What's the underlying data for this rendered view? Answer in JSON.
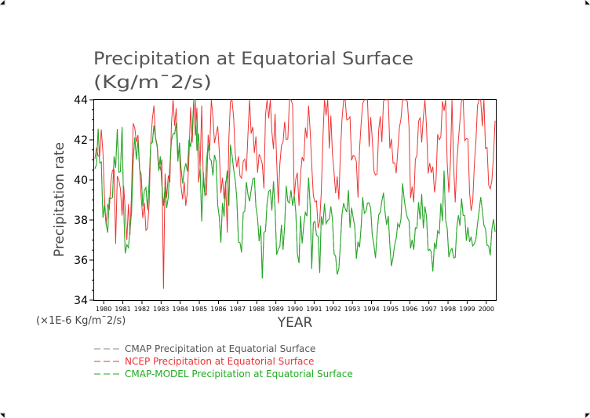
{
  "chart_data": {
    "type": "line",
    "title": "Precipitation at Equatorial Surface",
    "units": "(Kg/m¯2/s)",
    "ylabel": "Precipitation rate",
    "xlabel": "YEAR",
    "yscale_label": "(×1E-6 Kg/m¯2/s)",
    "ylim": [
      34,
      44
    ],
    "yticks": [
      "34",
      "36",
      "38",
      "40",
      "42",
      "44"
    ],
    "x_start": 1979.5,
    "x_end": 2000.5,
    "xticks": [
      "1980",
      "1981",
      "1982",
      "1983",
      "1984",
      "1985",
      "1986",
      "1987",
      "1988",
      "1989",
      "1990",
      "1991",
      "1992",
      "1993",
      "1994",
      "1995",
      "1996",
      "1997",
      "1998",
      "1999",
      "2000"
    ],
    "series": [
      {
        "name": "CMAP Precipitation at Equatorial Surface",
        "color": "#888888",
        "annual": [
          40.2,
          39.5,
          40.5,
          40.8,
          41.2,
          41.5,
          39.3,
          38.8,
          38.6,
          38.2,
          38.4,
          37.8,
          37.5,
          38.0,
          38.1,
          37.6,
          37.8,
          37.2,
          37.3,
          37.5,
          37.8
        ],
        "amp": [
          1.8,
          2.0,
          1.6,
          1.8,
          1.4,
          2.2,
          1.6,
          1.5,
          1.4,
          1.6,
          1.5,
          1.7,
          1.4,
          1.4,
          1.3,
          1.6,
          1.4,
          1.3,
          1.0,
          1.0,
          1.0
        ]
      },
      {
        "name": "NCEP Precipitation at Equatorial Surface",
        "color": "#ee3333",
        "annual": [
          40.6,
          39.6,
          40.6,
          40.9,
          41.1,
          41.3,
          41.6,
          41.3,
          41.6,
          42.2,
          41.7,
          40.7,
          41.1,
          41.9,
          42.1,
          41.7,
          41.5,
          41.5,
          41.6,
          42.1,
          42.3
        ],
        "amp": [
          2.0,
          2.2,
          2.0,
          2.0,
          1.8,
          2.0,
          2.0,
          1.6,
          2.0,
          2.2,
          1.8,
          2.0,
          2.4,
          2.0,
          2.4,
          2.6,
          2.2,
          2.0,
          2.4,
          2.4,
          1.8
        ]
      },
      {
        "name": "CMAP-MODEL Precipitation at Equatorial Surface",
        "color": "#22aa22",
        "annual": [
          40.2,
          39.5,
          40.5,
          40.8,
          41.2,
          41.5,
          39.3,
          38.8,
          38.6,
          38.2,
          38.4,
          37.8,
          37.5,
          38.0,
          38.1,
          37.6,
          37.8,
          37.2,
          37.3,
          37.5,
          37.8
        ],
        "amp": [
          1.8,
          2.0,
          1.6,
          1.8,
          1.4,
          2.2,
          1.6,
          1.5,
          1.4,
          1.6,
          1.5,
          1.7,
          1.4,
          1.4,
          1.3,
          1.6,
          1.4,
          1.3,
          1.0,
          1.0,
          1.0
        ]
      }
    ]
  }
}
